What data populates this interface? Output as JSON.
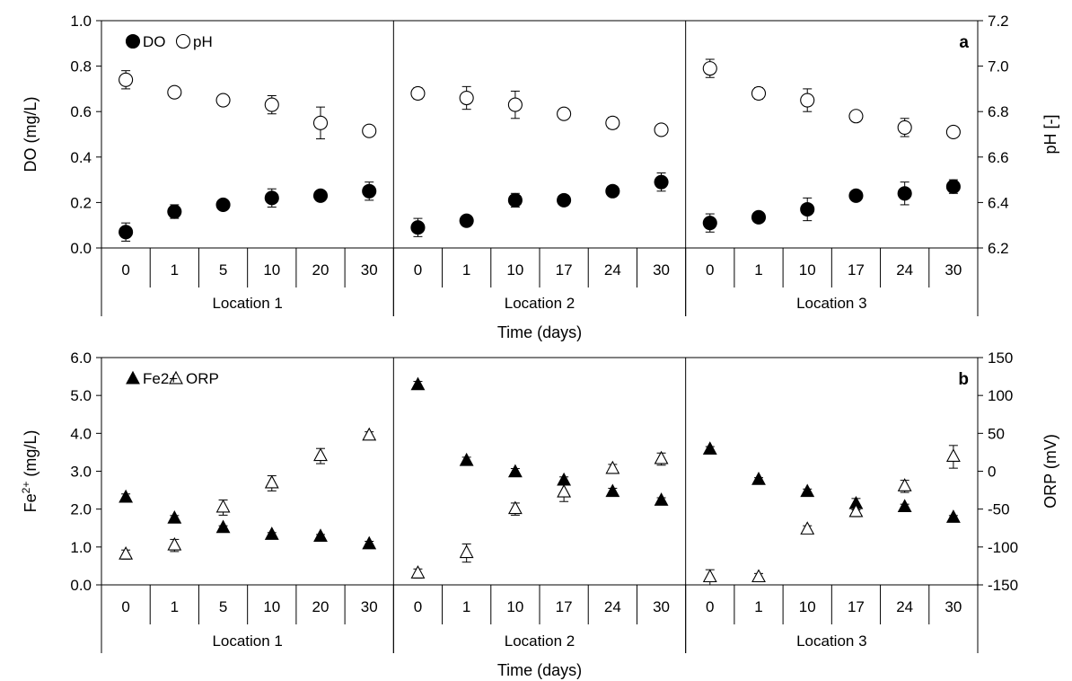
{
  "chart_data": [
    {
      "type": "scatter",
      "panel_label": "a",
      "xlabel": "Time (days)",
      "ylabel_left": "DO (mg/L)",
      "ylabel_right": "pH [-]",
      "ylim_left": [
        0,
        1
      ],
      "ylim_right": [
        6.2,
        7.2
      ],
      "yticks_left": [
        "0.0",
        "0.2",
        "0.4",
        "0.6",
        "0.8",
        "1.0"
      ],
      "yticks_right": [
        "6.2",
        "6.4",
        "6.6",
        "6.8",
        "7.0",
        "7.2"
      ],
      "legend_position": "top-left",
      "groups": [
        {
          "label": "Location 1",
          "days": [
            "0",
            "1",
            "5",
            "10",
            "20",
            "30"
          ]
        },
        {
          "label": "Location 2",
          "days": [
            "0",
            "1",
            "10",
            "17",
            "24",
            "30"
          ]
        },
        {
          "label": "Location 3",
          "days": [
            "0",
            "1",
            "10",
            "17",
            "24",
            "30"
          ]
        }
      ],
      "series": [
        {
          "name": "DO",
          "axis": "left",
          "marker": "filled-circle",
          "values": [
            0.07,
            0.16,
            0.19,
            0.22,
            0.23,
            0.25,
            0.09,
            0.12,
            0.21,
            0.21,
            0.25,
            0.29,
            0.11,
            0.135,
            0.17,
            0.23,
            0.24,
            0.27
          ],
          "errors": [
            0.04,
            0.03,
            0.01,
            0.04,
            0.02,
            0.04,
            0.04,
            0.01,
            0.03,
            0.015,
            0.01,
            0.04,
            0.04,
            0.01,
            0.05,
            0.02,
            0.05,
            0.03
          ]
        },
        {
          "name": "pH",
          "axis": "right",
          "marker": "open-circle",
          "values": [
            6.94,
            6.885,
            6.85,
            6.83,
            6.75,
            6.715,
            6.88,
            6.86,
            6.83,
            6.79,
            6.75,
            6.72,
            6.99,
            6.88,
            6.85,
            6.78,
            6.73,
            6.71
          ],
          "errors": [
            0.04,
            0.02,
            0.015,
            0.04,
            0.07,
            0.02,
            0.025,
            0.05,
            0.06,
            0.02,
            0.025,
            0.015,
            0.04,
            0.025,
            0.05,
            0.02,
            0.04,
            0.015
          ]
        }
      ]
    },
    {
      "type": "scatter",
      "panel_label": "b",
      "xlabel": "Time (days)",
      "ylabel_left": "Fe2+ (mg/L)",
      "ylabel_right": "ORP (mV)",
      "ylim_left": [
        0,
        6
      ],
      "ylim_right": [
        -150,
        150
      ],
      "yticks_left": [
        "0.0",
        "1.0",
        "2.0",
        "3.0",
        "4.0",
        "5.0",
        "6.0"
      ],
      "yticks_right": [
        "-150",
        "-100",
        "-50",
        "0",
        "50",
        "100",
        "150"
      ],
      "legend_position": "top-left",
      "groups": [
        {
          "label": "Location 1",
          "days": [
            "0",
            "1",
            "5",
            "10",
            "20",
            "30"
          ]
        },
        {
          "label": "Location 2",
          "days": [
            "0",
            "1",
            "10",
            "17",
            "24",
            "30"
          ]
        },
        {
          "label": "Location 3",
          "days": [
            "0",
            "1",
            "10",
            "17",
            "24",
            "30"
          ]
        }
      ],
      "series": [
        {
          "name": "Fe2+",
          "axis": "left",
          "marker": "filled-triangle",
          "values": [
            2.3,
            1.75,
            1.5,
            1.32,
            1.27,
            1.07,
            5.27,
            3.27,
            2.97,
            2.75,
            2.45,
            2.22,
            3.57,
            2.77,
            2.45,
            2.13,
            2.05,
            1.77
          ],
          "errors": [
            0.1,
            0.08,
            0.06,
            0.06,
            0.06,
            0.08,
            0.1,
            0.1,
            0.1,
            0.1,
            0.1,
            0.08,
            0.08,
            0.06,
            0.08,
            0.15,
            0.08,
            0.06
          ]
        },
        {
          "name": "ORP",
          "axis": "right",
          "marker": "open-triangle",
          "values": [
            -110,
            -98,
            -48,
            -16,
            20,
            47,
            -135,
            -108,
            -50,
            -28,
            3,
            16,
            -140,
            -140,
            -77,
            -54,
            -20,
            19
          ],
          "errors": [
            6,
            8,
            10,
            10,
            10,
            5,
            6,
            12,
            8,
            12,
            6,
            8,
            10,
            5,
            5,
            6,
            8,
            15
          ]
        }
      ]
    }
  ]
}
